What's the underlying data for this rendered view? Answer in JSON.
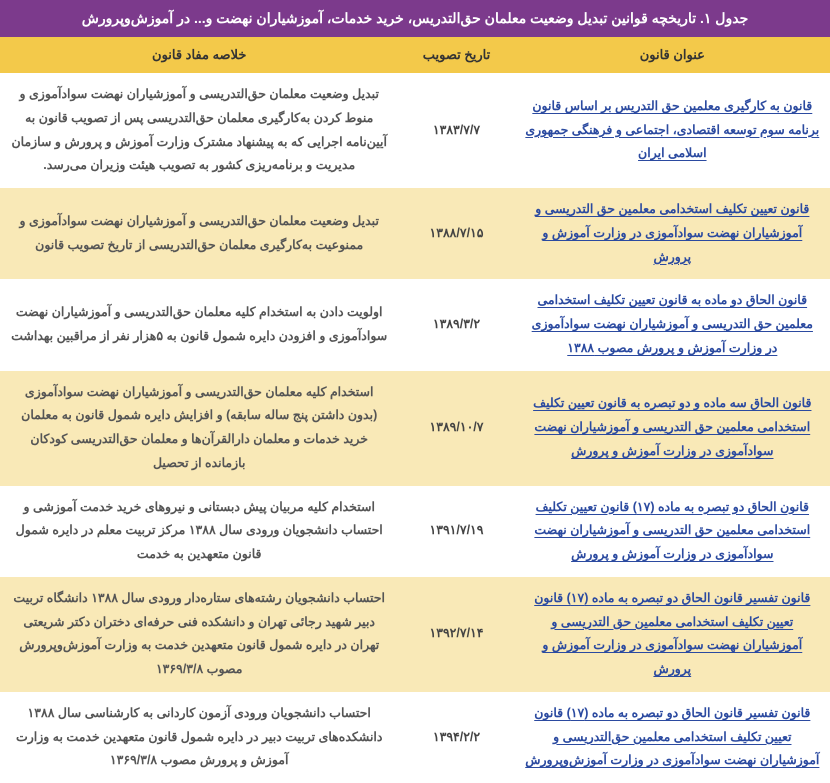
{
  "title": "جدول ۱. تاریخچه قوانین تبدیل وضعیت معلمان حق‌التدریس، خرید خدمات، آموزشیاران نهضت و... در آموزش‌وپرورش",
  "headers": {
    "law_title": "عنوان قانون",
    "approval_date": "تاریخ تصویب",
    "summary": "خلاصه مفاد قانون"
  },
  "rows": [
    {
      "law_title": "قانون به کارگیری معلمین حق التدریس بر اساس قانون برنامه سوم توسعه اقتصادی، اجتماعی و فرهنگی جمهوری اسلامی ایران",
      "approval_date": "۱۳۸۳/۷/۷",
      "summary": "تبدیل وضعیت معلمان حق‌التدریسی و آموزشیاران نهضت سوادآموزی و منوط کردن بەکارگیری معلمان حق‌التدریسی پس از تصویب قانون به آیین‌نامه اجرایی که به پیشنهاد مشترک وزارت آموزش و پرورش و سازمان مدیریت و برنامه‌ریزی کشور به تصویب هیئت وزیران می‌رسد."
    },
    {
      "law_title": "قانون تعیین تکلیف استخدامی معلمین حق التدریسی و آموزشیاران نهضت سوادآموزی در وزارت آموزش و پرورش",
      "approval_date": "۱۳۸۸/۷/۱۵",
      "summary": "تبدیل وضعیت معلمان حق‌التدریسی و آموزشیاران نهضت سوادآموزی و ممنوعیت بەکارگیری معلمان حق‌التدریسی از تاریخ تصویب قانون"
    },
    {
      "law_title": "قانون الحاق دو ماده به قانون تعیین تکلیف استخدامی معلمین حق التدریسی و آموزشیاران نهضت سوادآموزی در وزارت آموزش و پرورش مصوب ۱۳۸۸",
      "approval_date": "۱۳۸۹/۳/۲",
      "summary": "اولویت دادن به استخدام کلیه معلمان حق‌التدریسی و آموزشیاران نهضت سوادآموزی و افزودن دایره شمول قانون به ۵هزار نفر از مراقبین بهداشت"
    },
    {
      "law_title": "قانون الحاق سه ماده و دو تبصره به قانون تعیین تکلیف استخدامی معلمین حق التدریسی و آموزشیاران نهضت سوادآموزی در وزارت آموزش و پرورش",
      "approval_date": "۱۳۸۹/۱۰/۷",
      "summary": "استخدام کلیه معلمان حق‌التدریسی و آموزشیاران نهضت سوادآموزی (بدون داشتن پنج ساله سابقه) و افزایش دایره شمول قانون به معلمان خرید خدمات و معلمان دارالقرآن‌ها و معلمان حق‌التدریسی کودکان بازمانده از تحصیل"
    },
    {
      "law_title": "قانون الحاق دو تبصره به ماده (۱۷) قانون تعیین تکلیف استخدامی معلمین حق التدریسی و آموزشیاران نهضت سوادآموزی در وزارت آموزش و پرورش",
      "approval_date": "۱۳۹۱/۷/۱۹",
      "summary": "استخدام کلیه مربیان پیش دبستانی و نیروهای خرید خدمت آموزشی و احتساب دانشجویان ورودی سال ۱۳۸۸ مرکز تربیت معلم در دایره شمول قانون متعهدین به خدمت"
    },
    {
      "law_title": "قانون تفسیر قانون الحاق دو تبصره به ماده (۱۷) قانون تعیین تکلیف استخدامی معلمین حق التدریسی و آموزشیاران نهضت سوادآموزی در وزارت آموزش و پرورش",
      "approval_date": "۱۳۹۲/۷/۱۴",
      "summary": "احتساب دانشجویان رشته‌های ستاره‌دار ورودی سال ۱۳۸۸ دانشگاه تربیت دبیر شهید رجائی تهران و دانشکده فنی حرفه‌ای دختران دکتر شریعتی تهران در دایره شمول قانون متعهدین خدمت به وزارت آموزش‌وپرورش مصوب ۱۳۶۹/۳/۸"
    },
    {
      "law_title": "قانون تفسیر قانون الحاق دو تبصره به ماده (۱۷) قانون تعیین تکلیف استخدامی معلمین حق‌التدریسی و آموزشیاران نهضت سوادآموزی در وزارت آموزش‌وپرورش",
      "approval_date": "۱۳۹۴/۲/۲",
      "summary": "احتساب دانشجویان ورودی آزمون کاردانی به کارشناسی سال ۱۳۸۸ دانشکده‌های تربیت دبیر در دایره شمول قانون متعهدین خدمت به وزارت آموزش و پرورش مصوب ۱۳۶۹/۳/۸"
    }
  ],
  "colors": {
    "header_bg": "#7c3a8c",
    "th_bg": "#f3c94a",
    "row_even_bg": "#f9e9b7",
    "row_odd_bg": "#ffffff",
    "link_color": "#2b4aa0"
  }
}
